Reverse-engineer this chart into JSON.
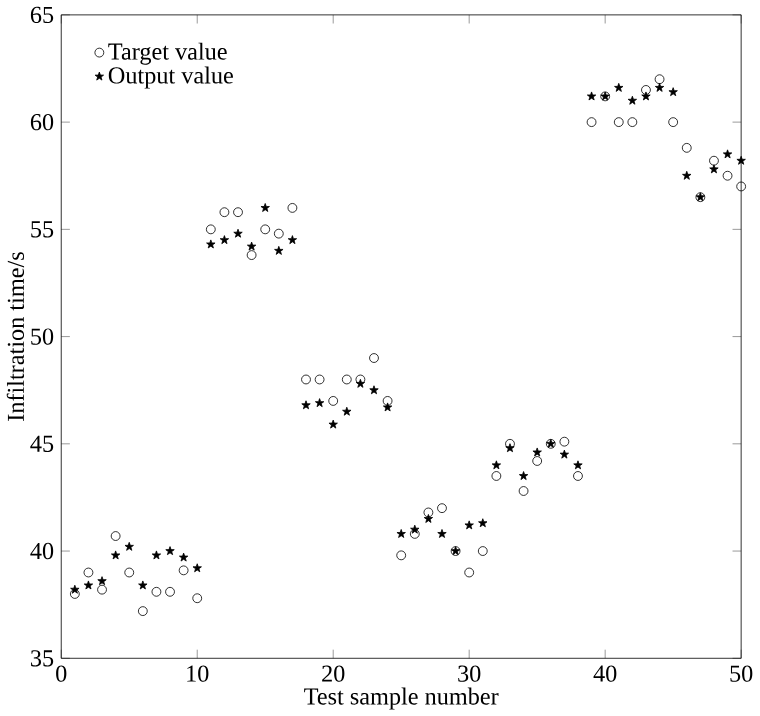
{
  "chart_data": {
    "type": "scatter",
    "xlabel": "Test sample number",
    "ylabel": "Infiltration time/s",
    "xlim": [
      0,
      50
    ],
    "ylim": [
      35,
      65
    ],
    "xticks": [
      0,
      10,
      20,
      30,
      40,
      50
    ],
    "yticks": [
      35,
      40,
      45,
      50,
      55,
      60,
      65
    ],
    "legend": "top left",
    "grid": false,
    "series": [
      {
        "name": "Target value",
        "color": "#000000",
        "marker": "circle",
        "x": [
          1,
          2,
          3,
          4,
          5,
          6,
          7,
          8,
          9,
          10,
          11,
          12,
          13,
          14,
          15,
          16,
          17,
          18,
          19,
          20,
          21,
          22,
          23,
          24,
          25,
          26,
          27,
          28,
          29,
          30,
          31,
          32,
          33,
          34,
          35,
          36,
          37,
          38,
          39,
          40,
          41,
          42,
          43,
          44,
          45,
          46,
          47,
          48,
          49,
          50
        ],
        "values": [
          38.0,
          39.0,
          38.2,
          40.7,
          39.0,
          37.2,
          38.1,
          38.1,
          39.1,
          37.8,
          55.0,
          55.8,
          55.8,
          53.8,
          55.0,
          54.8,
          56.0,
          48.0,
          48.0,
          47.0,
          48.0,
          48.0,
          49.0,
          47.0,
          39.8,
          40.8,
          41.8,
          42.0,
          40.0,
          39.0,
          40.0,
          43.5,
          45.0,
          42.8,
          44.2,
          45.0,
          45.1,
          43.5,
          60.0,
          61.2,
          60.0,
          60.0,
          61.5,
          62.0,
          60.0,
          58.8,
          56.5,
          58.2,
          57.5,
          57.0
        ]
      },
      {
        "name": "Output value",
        "color": "#000000",
        "marker": "star",
        "x": [
          1,
          2,
          3,
          4,
          5,
          6,
          7,
          8,
          9,
          10,
          11,
          12,
          13,
          14,
          15,
          16,
          17,
          18,
          19,
          20,
          21,
          22,
          23,
          24,
          25,
          26,
          27,
          28,
          29,
          30,
          31,
          32,
          33,
          34,
          35,
          36,
          37,
          38,
          39,
          40,
          41,
          42,
          43,
          44,
          45,
          46,
          47,
          48,
          49,
          50
        ],
        "values": [
          38.2,
          38.4,
          38.6,
          39.8,
          40.2,
          38.4,
          39.8,
          40.0,
          39.7,
          39.2,
          54.3,
          54.5,
          54.8,
          54.2,
          56.0,
          54.0,
          54.5,
          46.8,
          46.9,
          45.9,
          46.5,
          47.8,
          47.5,
          46.7,
          40.8,
          41.0,
          41.5,
          40.8,
          40.0,
          41.2,
          41.3,
          44.0,
          44.8,
          43.5,
          44.6,
          45.0,
          44.5,
          44.0,
          61.2,
          61.2,
          61.6,
          61.0,
          61.2,
          61.6,
          61.4,
          57.5,
          56.5,
          57.8,
          58.5,
          58.2
        ]
      }
    ]
  }
}
